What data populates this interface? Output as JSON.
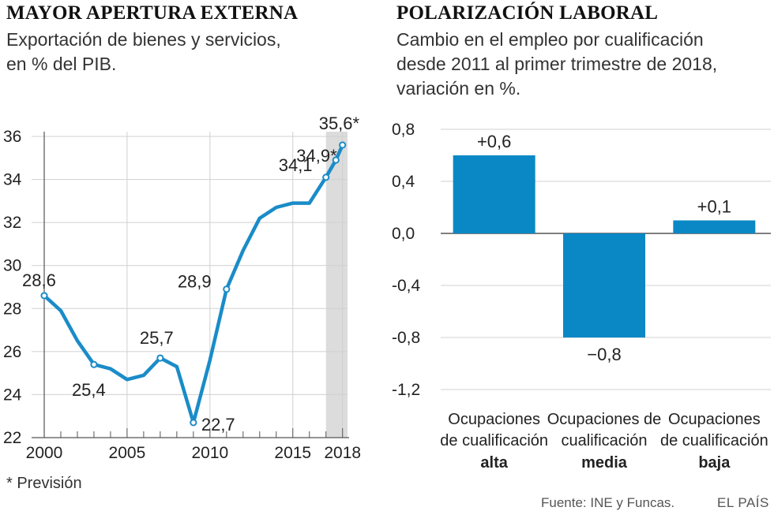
{
  "left": {
    "title": "MAYOR APERTURA EXTERNA",
    "subtitle_line1": "Exportación de bienes y servicios,",
    "subtitle_line2": "en % del PIB.",
    "footnote": "* Previsión"
  },
  "right": {
    "title": "POLARIZACIÓN LABORAL",
    "subtitle_line1": "Cambio en el empleo por cualificación",
    "subtitle_line2": "desde 2011 al primer trimestre de 2018,",
    "subtitle_line3": "variación en %."
  },
  "footer": {
    "source": "Fuente: INE y Funcas.",
    "brand": "EL PAÍS"
  },
  "colors": {
    "series": "#1a8cc8",
    "bar": "#0a88c6",
    "forecast_band": "#dcdcdc",
    "grid": "#d0d0d0",
    "axis": "#555555"
  },
  "chart_data": [
    {
      "type": "line",
      "title": "MAYOR APERTURA EXTERNA",
      "ylabel": "Exportación de bienes y servicios, en % del PIB",
      "x": [
        2000,
        2001,
        2002,
        2003,
        2004,
        2005,
        2006,
        2007,
        2008,
        2009,
        2010,
        2011,
        2012,
        2013,
        2014,
        2015,
        2016,
        2017,
        2018
      ],
      "values": [
        28.6,
        27.9,
        26.5,
        25.4,
        25.2,
        24.7,
        24.9,
        25.7,
        25.3,
        22.7,
        25.6,
        28.9,
        30.7,
        32.2,
        32.7,
        32.9,
        32.9,
        34.1,
        35.6
      ],
      "extra_points": [
        {
          "x": 2017.6,
          "value": 34.9
        }
      ],
      "markers_at": [
        2000,
        2003,
        2007,
        2009,
        2011,
        2017,
        2017.6,
        2018
      ],
      "labels": [
        {
          "x": 2000,
          "text": "28,6"
        },
        {
          "x": 2003,
          "text": "25,4"
        },
        {
          "x": 2007,
          "text": "25,7"
        },
        {
          "x": 2009,
          "text": "22,7"
        },
        {
          "x": 2011,
          "text": "28,9"
        },
        {
          "x": 2017,
          "text": "34,1"
        },
        {
          "x": 2017.6,
          "text": "34,9*"
        },
        {
          "x": 2018,
          "text": "35,6*"
        }
      ],
      "forecast_band": [
        2017.0,
        2018.3
      ],
      "xlim": [
        2000,
        2018.3
      ],
      "ylim": [
        22,
        36
      ],
      "yticks": [
        "22",
        "24",
        "26",
        "28",
        "30",
        "32",
        "34",
        "36"
      ],
      "xticks": [
        "2000",
        "2005",
        "2010",
        "2015",
        "2018"
      ],
      "grid": true
    },
    {
      "type": "bar",
      "title": "POLARIZACIÓN LABORAL",
      "ylabel": "variación en %",
      "categories": [
        {
          "line1": "Ocupaciones",
          "line2": "de cualificación",
          "bold": "alta"
        },
        {
          "line1": "Ocupaciones de",
          "line2": "cualificación",
          "bold": "media"
        },
        {
          "line1": "Ocupaciones",
          "line2": "de cualificación",
          "bold": "baja"
        }
      ],
      "values": [
        0.6,
        -0.8,
        0.1
      ],
      "value_labels": [
        "+0,6",
        "−0,8",
        "+0,1"
      ],
      "ylim": [
        -1.2,
        0.8
      ],
      "yticks": [
        "0,8",
        "0,4",
        "0,0",
        "-0,4",
        "-0,8",
        "-1,2"
      ],
      "grid": true
    }
  ]
}
